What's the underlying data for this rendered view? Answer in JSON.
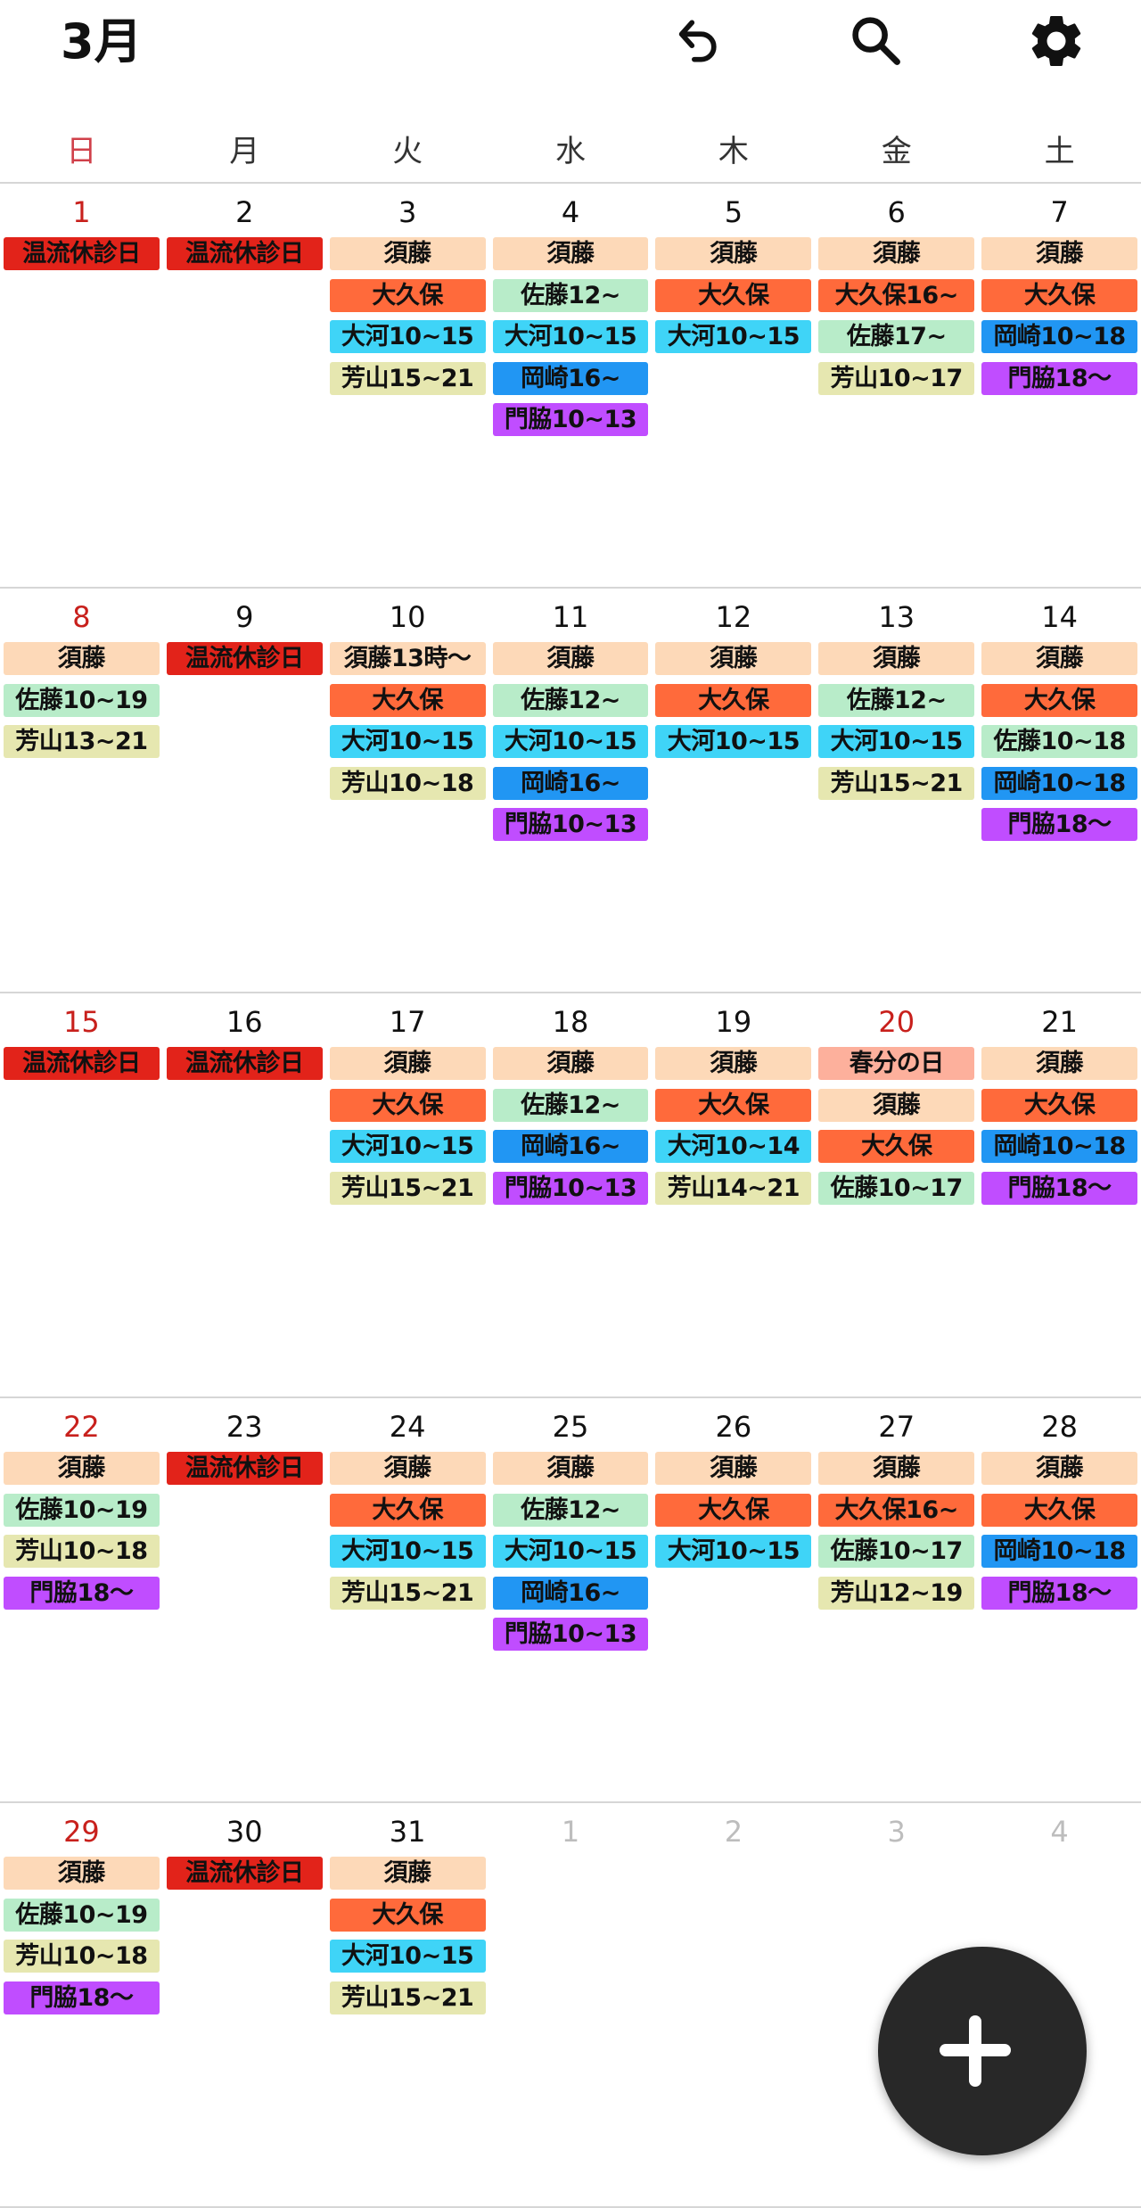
{
  "header": {
    "title": "3月",
    "icons": [
      "undo-icon",
      "search-icon",
      "settings-gear-icon"
    ]
  },
  "weekdays": [
    "日",
    "月",
    "火",
    "水",
    "木",
    "金",
    "土"
  ],
  "colors": {
    "closed": "#e2231a",
    "sudo": "#fdd9b8",
    "okubo": "#ff6a3b",
    "sato": "#b8ecc9",
    "okawa": "#3fd4f7",
    "yoshiyama": "#e6e7b0",
    "okazaki": "#2196f3",
    "kadowaki": "#c04dff",
    "holiday": "#fdb09c",
    "sunday_text": "#c8201c",
    "muted_text": "#bdbdbd"
  },
  "weeks": [
    [
      {
        "date": "1",
        "red": true,
        "events": [
          {
            "label": "温流休診日",
            "type": "closed"
          }
        ]
      },
      {
        "date": "2",
        "events": [
          {
            "label": "温流休診日",
            "type": "closed"
          }
        ]
      },
      {
        "date": "3",
        "events": [
          {
            "label": "須藤",
            "type": "sudo"
          },
          {
            "label": "大久保",
            "type": "okubo"
          },
          {
            "label": "大河10~15",
            "type": "okawa"
          },
          {
            "label": "芳山15~21",
            "type": "yoshiyama"
          }
        ]
      },
      {
        "date": "4",
        "events": [
          {
            "label": "須藤",
            "type": "sudo"
          },
          {
            "label": "佐藤12~",
            "type": "sato"
          },
          {
            "label": "大河10~15",
            "type": "okawa"
          },
          {
            "label": "岡崎16~",
            "type": "okazaki"
          },
          {
            "label": "門脇10~13",
            "type": "kadowaki"
          }
        ]
      },
      {
        "date": "5",
        "events": [
          {
            "label": "須藤",
            "type": "sudo"
          },
          {
            "label": "大久保",
            "type": "okubo"
          },
          {
            "label": "大河10~15",
            "type": "okawa"
          }
        ]
      },
      {
        "date": "6",
        "events": [
          {
            "label": "須藤",
            "type": "sudo"
          },
          {
            "label": "大久保16~",
            "type": "okubo"
          },
          {
            "label": "佐藤17~",
            "type": "sato"
          },
          {
            "label": "芳山10~17",
            "type": "yoshiyama"
          }
        ]
      },
      {
        "date": "7",
        "events": [
          {
            "label": "須藤",
            "type": "sudo"
          },
          {
            "label": "大久保",
            "type": "okubo"
          },
          {
            "label": "岡崎10~18",
            "type": "okazaki"
          },
          {
            "label": "門脇18〜",
            "type": "kadowaki"
          }
        ]
      }
    ],
    [
      {
        "date": "8",
        "red": true,
        "events": [
          {
            "label": "須藤",
            "type": "sudo"
          },
          {
            "label": "佐藤10~19",
            "type": "sato"
          },
          {
            "label": "芳山13~21",
            "type": "yoshiyama"
          }
        ]
      },
      {
        "date": "9",
        "events": [
          {
            "label": "温流休診日",
            "type": "closed"
          }
        ]
      },
      {
        "date": "10",
        "events": [
          {
            "label": "須藤13時〜",
            "type": "sudo"
          },
          {
            "label": "大久保",
            "type": "okubo"
          },
          {
            "label": "大河10~15",
            "type": "okawa"
          },
          {
            "label": "芳山10~18",
            "type": "yoshiyama"
          }
        ]
      },
      {
        "date": "11",
        "events": [
          {
            "label": "須藤",
            "type": "sudo"
          },
          {
            "label": "佐藤12~",
            "type": "sato"
          },
          {
            "label": "大河10~15",
            "type": "okawa"
          },
          {
            "label": "岡崎16~",
            "type": "okazaki"
          },
          {
            "label": "門脇10~13",
            "type": "kadowaki"
          }
        ]
      },
      {
        "date": "12",
        "events": [
          {
            "label": "須藤",
            "type": "sudo"
          },
          {
            "label": "大久保",
            "type": "okubo"
          },
          {
            "label": "大河10~15",
            "type": "okawa"
          }
        ]
      },
      {
        "date": "13",
        "events": [
          {
            "label": "須藤",
            "type": "sudo"
          },
          {
            "label": "佐藤12~",
            "type": "sato"
          },
          {
            "label": "大河10~15",
            "type": "okawa"
          },
          {
            "label": "芳山15~21",
            "type": "yoshiyama"
          }
        ]
      },
      {
        "date": "14",
        "events": [
          {
            "label": "須藤",
            "type": "sudo"
          },
          {
            "label": "大久保",
            "type": "okubo"
          },
          {
            "label": "佐藤10~18",
            "type": "sato"
          },
          {
            "label": "岡崎10~18",
            "type": "okazaki"
          },
          {
            "label": "門脇18〜",
            "type": "kadowaki"
          }
        ]
      }
    ],
    [
      {
        "date": "15",
        "red": true,
        "events": [
          {
            "label": "温流休診日",
            "type": "closed"
          }
        ]
      },
      {
        "date": "16",
        "events": [
          {
            "label": "温流休診日",
            "type": "closed"
          }
        ]
      },
      {
        "date": "17",
        "events": [
          {
            "label": "須藤",
            "type": "sudo"
          },
          {
            "label": "大久保",
            "type": "okubo"
          },
          {
            "label": "大河10~15",
            "type": "okawa"
          },
          {
            "label": "芳山15~21",
            "type": "yoshiyama"
          }
        ]
      },
      {
        "date": "18",
        "events": [
          {
            "label": "須藤",
            "type": "sudo"
          },
          {
            "label": "佐藤12~",
            "type": "sato"
          },
          {
            "label": "岡崎16~",
            "type": "okazaki"
          },
          {
            "label": "門脇10~13",
            "type": "kadowaki"
          }
        ]
      },
      {
        "date": "19",
        "events": [
          {
            "label": "須藤",
            "type": "sudo"
          },
          {
            "label": "大久保",
            "type": "okubo"
          },
          {
            "label": "大河10~14",
            "type": "okawa"
          },
          {
            "label": "芳山14~21",
            "type": "yoshiyama"
          }
        ]
      },
      {
        "date": "20",
        "red": true,
        "events": [
          {
            "label": "春分の日",
            "type": "holiday"
          },
          {
            "label": "須藤",
            "type": "sudo"
          },
          {
            "label": "大久保",
            "type": "okubo"
          },
          {
            "label": "佐藤10~17",
            "type": "sato"
          }
        ]
      },
      {
        "date": "21",
        "events": [
          {
            "label": "須藤",
            "type": "sudo"
          },
          {
            "label": "大久保",
            "type": "okubo"
          },
          {
            "label": "岡崎10~18",
            "type": "okazaki"
          },
          {
            "label": "門脇18〜",
            "type": "kadowaki"
          }
        ]
      }
    ],
    [
      {
        "date": "22",
        "red": true,
        "events": [
          {
            "label": "須藤",
            "type": "sudo"
          },
          {
            "label": "佐藤10~19",
            "type": "sato"
          },
          {
            "label": "芳山10~18",
            "type": "yoshiyama"
          },
          {
            "label": "門脇18〜",
            "type": "kadowaki"
          }
        ]
      },
      {
        "date": "23",
        "events": [
          {
            "label": "温流休診日",
            "type": "closed"
          }
        ]
      },
      {
        "date": "24",
        "events": [
          {
            "label": "須藤",
            "type": "sudo"
          },
          {
            "label": "大久保",
            "type": "okubo"
          },
          {
            "label": "大河10~15",
            "type": "okawa"
          },
          {
            "label": "芳山15~21",
            "type": "yoshiyama"
          }
        ]
      },
      {
        "date": "25",
        "events": [
          {
            "label": "須藤",
            "type": "sudo"
          },
          {
            "label": "佐藤12~",
            "type": "sato"
          },
          {
            "label": "大河10~15",
            "type": "okawa"
          },
          {
            "label": "岡崎16~",
            "type": "okazaki"
          },
          {
            "label": "門脇10~13",
            "type": "kadowaki"
          }
        ]
      },
      {
        "date": "26",
        "events": [
          {
            "label": "須藤",
            "type": "sudo"
          },
          {
            "label": "大久保",
            "type": "okubo"
          },
          {
            "label": "大河10~15",
            "type": "okawa"
          }
        ]
      },
      {
        "date": "27",
        "events": [
          {
            "label": "須藤",
            "type": "sudo"
          },
          {
            "label": "大久保16~",
            "type": "okubo"
          },
          {
            "label": "佐藤10~17",
            "type": "sato"
          },
          {
            "label": "芳山12~19",
            "type": "yoshiyama"
          }
        ]
      },
      {
        "date": "28",
        "events": [
          {
            "label": "須藤",
            "type": "sudo"
          },
          {
            "label": "大久保",
            "type": "okubo"
          },
          {
            "label": "岡崎10~18",
            "type": "okazaki"
          },
          {
            "label": "門脇18〜",
            "type": "kadowaki"
          }
        ]
      }
    ],
    [
      {
        "date": "29",
        "red": true,
        "events": [
          {
            "label": "須藤",
            "type": "sudo"
          },
          {
            "label": "佐藤10~19",
            "type": "sato"
          },
          {
            "label": "芳山10~18",
            "type": "yoshiyama"
          },
          {
            "label": "門脇18〜",
            "type": "kadowaki"
          }
        ]
      },
      {
        "date": "30",
        "events": [
          {
            "label": "温流休診日",
            "type": "closed"
          }
        ]
      },
      {
        "date": "31",
        "events": [
          {
            "label": "須藤",
            "type": "sudo"
          },
          {
            "label": "大久保",
            "type": "okubo"
          },
          {
            "label": "大河10~15",
            "type": "okawa"
          },
          {
            "label": "芳山15~21",
            "type": "yoshiyama"
          }
        ]
      },
      {
        "date": "1",
        "muted": true,
        "events": []
      },
      {
        "date": "2",
        "muted": true,
        "events": []
      },
      {
        "date": "3",
        "muted": true,
        "events": []
      },
      {
        "date": "4",
        "muted": true,
        "events": []
      }
    ]
  ],
  "fab": {
    "icon": "plus-icon"
  }
}
